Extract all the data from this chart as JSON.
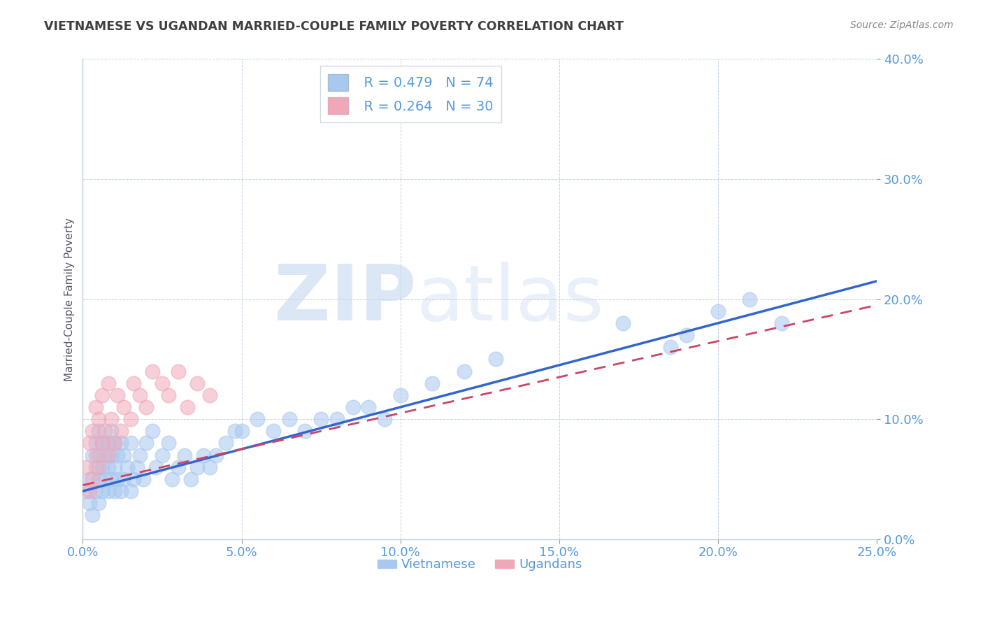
{
  "title": "VIETNAMESE VS UGANDAN MARRIED-COUPLE FAMILY POVERTY CORRELATION CHART",
  "source": "Source: ZipAtlas.com",
  "xlim": [
    0.0,
    0.25
  ],
  "ylim": [
    0.0,
    0.4
  ],
  "watermark_zip": "ZIP",
  "watermark_atlas": "atlas",
  "ylabel": "Married-Couple Family Poverty",
  "legend_label_viet": "Vietnamese",
  "legend_label_ugan": "Ugandans",
  "legend_r_viet": "R = 0.479",
  "legend_n_viet": "N = 74",
  "legend_r_ugan": "R = 0.264",
  "legend_n_ugan": "N = 30",
  "viet_color": "#a8c8f0",
  "ugan_color": "#f0a8b8",
  "viet_line_color": "#3366cc",
  "ugan_line_color": "#cc4466",
  "title_color": "#404040",
  "axis_label_color": "#5599dd",
  "ylabel_color": "#555566",
  "viet_x": [
    0.001,
    0.002,
    0.002,
    0.003,
    0.003,
    0.004,
    0.004,
    0.004,
    0.005,
    0.005,
    0.005,
    0.005,
    0.006,
    0.006,
    0.006,
    0.007,
    0.007,
    0.008,
    0.008,
    0.008,
    0.009,
    0.009,
    0.009,
    0.01,
    0.01,
    0.01,
    0.011,
    0.011,
    0.012,
    0.012,
    0.013,
    0.013,
    0.014,
    0.015,
    0.015,
    0.016,
    0.017,
    0.018,
    0.019,
    0.02,
    0.022,
    0.023,
    0.025,
    0.027,
    0.028,
    0.03,
    0.032,
    0.034,
    0.036,
    0.038,
    0.04,
    0.042,
    0.045,
    0.048,
    0.05,
    0.055,
    0.06,
    0.065,
    0.07,
    0.075,
    0.08,
    0.085,
    0.09,
    0.095,
    0.1,
    0.11,
    0.12,
    0.13,
    0.17,
    0.185,
    0.19,
    0.2,
    0.21,
    0.22
  ],
  "viet_y": [
    0.04,
    0.03,
    0.05,
    0.02,
    0.07,
    0.04,
    0.06,
    0.08,
    0.03,
    0.05,
    0.07,
    0.09,
    0.04,
    0.06,
    0.08,
    0.05,
    0.07,
    0.04,
    0.06,
    0.08,
    0.05,
    0.07,
    0.09,
    0.04,
    0.06,
    0.08,
    0.05,
    0.07,
    0.04,
    0.08,
    0.05,
    0.07,
    0.06,
    0.04,
    0.08,
    0.05,
    0.06,
    0.07,
    0.05,
    0.08,
    0.09,
    0.06,
    0.07,
    0.08,
    0.05,
    0.06,
    0.07,
    0.05,
    0.06,
    0.07,
    0.06,
    0.07,
    0.08,
    0.09,
    0.09,
    0.1,
    0.09,
    0.1,
    0.09,
    0.1,
    0.1,
    0.11,
    0.11,
    0.1,
    0.12,
    0.13,
    0.14,
    0.15,
    0.18,
    0.16,
    0.17,
    0.19,
    0.2,
    0.18
  ],
  "ugan_x": [
    0.001,
    0.002,
    0.002,
    0.003,
    0.003,
    0.004,
    0.004,
    0.005,
    0.005,
    0.006,
    0.006,
    0.007,
    0.008,
    0.008,
    0.009,
    0.01,
    0.011,
    0.012,
    0.013,
    0.015,
    0.016,
    0.018,
    0.02,
    0.022,
    0.025,
    0.027,
    0.03,
    0.033,
    0.036,
    0.04
  ],
  "ugan_y": [
    0.06,
    0.04,
    0.08,
    0.05,
    0.09,
    0.07,
    0.11,
    0.06,
    0.1,
    0.08,
    0.12,
    0.09,
    0.07,
    0.13,
    0.1,
    0.08,
    0.12,
    0.09,
    0.11,
    0.1,
    0.13,
    0.12,
    0.11,
    0.14,
    0.13,
    0.12,
    0.14,
    0.11,
    0.13,
    0.12
  ],
  "viet_line_x0": 0.0,
  "viet_line_y0": 0.04,
  "viet_line_x1": 0.25,
  "viet_line_y1": 0.215,
  "ugan_line_x0": 0.0,
  "ugan_line_y0": 0.045,
  "ugan_line_x1": 0.25,
  "ugan_line_y1": 0.195
}
